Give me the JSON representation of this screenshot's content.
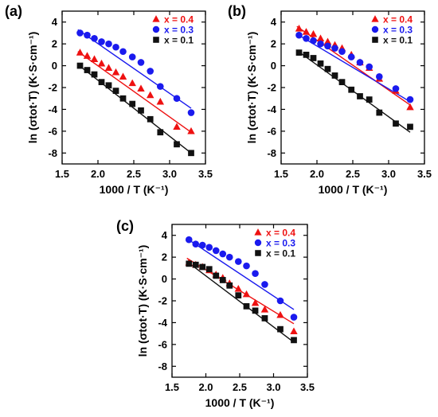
{
  "chart_data": [
    {
      "type": "scatter",
      "panel_label": "(a)",
      "xlabel": "1000 / T (K⁻¹)",
      "ylabel": "ln (σtot·T) (K·S·cm⁻¹)",
      "xlim": [
        1.5,
        3.5
      ],
      "ylim": [
        -9,
        5
      ],
      "x_ticks": [
        "1.5",
        "2.0",
        "2.5",
        "3.0",
        "3.5"
      ],
      "y_ticks": [
        "-8",
        "-6",
        "-4",
        "-2",
        "0",
        "2",
        "4"
      ],
      "legend_position": "top-right",
      "series": [
        {
          "name": "x = 0.4",
          "color": "#ee1111",
          "marker": "triangle",
          "x": [
            1.75,
            1.85,
            1.95,
            2.05,
            2.15,
            2.25,
            2.35,
            2.48,
            2.6,
            2.73,
            2.87,
            3.1,
            3.3
          ],
          "y": [
            1.2,
            0.9,
            0.6,
            0.2,
            -0.2,
            -0.6,
            -1.0,
            -1.6,
            -2.1,
            -2.7,
            -3.3,
            -5.6,
            -6.0
          ],
          "fit": [
            [
              1.72,
              1.3
            ],
            [
              3.3,
              -6.1
            ]
          ]
        },
        {
          "name": "x = 0.3",
          "color": "#1a1aee",
          "marker": "circle",
          "x": [
            1.75,
            1.85,
            1.95,
            2.05,
            2.15,
            2.25,
            2.35,
            2.48,
            2.6,
            2.73,
            2.87,
            3.1,
            3.3
          ],
          "y": [
            3.0,
            2.8,
            2.5,
            2.2,
            2.0,
            1.7,
            1.3,
            0.8,
            0.3,
            -0.5,
            -1.9,
            -3.0,
            -4.3
          ],
          "fit": [
            [
              1.72,
              3.3
            ],
            [
              3.3,
              -3.9
            ]
          ]
        },
        {
          "name": "x = 0.1",
          "color": "#111111",
          "marker": "square",
          "x": [
            1.75,
            1.85,
            1.95,
            2.05,
            2.15,
            2.25,
            2.35,
            2.48,
            2.6,
            2.73,
            2.87,
            3.1,
            3.3
          ],
          "y": [
            0.0,
            -0.4,
            -0.8,
            -1.5,
            -1.8,
            -2.3,
            -3.0,
            -3.5,
            -4.1,
            -4.9,
            -6.1,
            -7.2,
            -8.0
          ],
          "fit": [
            [
              1.72,
              0.1
            ],
            [
              3.3,
              -8.0
            ]
          ]
        }
      ]
    },
    {
      "type": "scatter",
      "panel_label": "(b)",
      "xlabel": "1000 / T (K⁻¹)",
      "ylabel": "ln (σtot·T) (K·S·cm⁻¹)",
      "xlim": [
        1.5,
        3.5
      ],
      "ylim": [
        -9,
        5
      ],
      "x_ticks": [
        "1.5",
        "2.0",
        "2.5",
        "3.0",
        "3.5"
      ],
      "y_ticks": [
        "-8",
        "-6",
        "-4",
        "-2",
        "0",
        "2",
        "4"
      ],
      "legend_position": "top-right",
      "series": [
        {
          "name": "x = 0.4",
          "color": "#ee1111",
          "marker": "triangle",
          "x": [
            1.75,
            1.85,
            1.95,
            2.05,
            2.15,
            2.25,
            2.35,
            2.48,
            2.6,
            2.73,
            2.87,
            3.1,
            3.3
          ],
          "y": [
            3.4,
            3.1,
            2.9,
            2.5,
            2.2,
            1.9,
            1.6,
            1.0,
            0.3,
            -0.2,
            -1.2,
            -2.3,
            -3.8
          ],
          "fit": [
            [
              1.72,
              3.6
            ],
            [
              3.3,
              -3.6
            ]
          ]
        },
        {
          "name": "x = 0.3",
          "color": "#1a1aee",
          "marker": "circle",
          "x": [
            1.75,
            1.85,
            1.95,
            2.05,
            2.15,
            2.25,
            2.35,
            2.48,
            2.6,
            2.73,
            2.87,
            3.1,
            3.3
          ],
          "y": [
            2.8,
            2.5,
            2.3,
            2.0,
            1.8,
            1.6,
            1.3,
            0.8,
            0.3,
            -0.1,
            -1.0,
            -2.1,
            -3.1
          ],
          "fit": [
            [
              1.72,
              2.9
            ],
            [
              3.3,
              -3.3
            ]
          ]
        },
        {
          "name": "x = 0.1",
          "color": "#111111",
          "marker": "square",
          "x": [
            1.75,
            1.85,
            1.95,
            2.05,
            2.15,
            2.25,
            2.35,
            2.48,
            2.6,
            2.73,
            2.87,
            3.1,
            3.3
          ],
          "y": [
            1.2,
            1.0,
            0.7,
            0.2,
            -0.3,
            -0.9,
            -1.5,
            -2.2,
            -2.8,
            -3.1,
            -4.3,
            -5.3,
            -5.6
          ],
          "fit": [
            [
              1.72,
              1.4
            ],
            [
              3.3,
              -6.1
            ]
          ]
        }
      ]
    },
    {
      "type": "scatter",
      "panel_label": "(c)",
      "xlabel": "1000 / T (K⁻¹)",
      "ylabel": "ln (σtot·T) (K·S·cm⁻¹)",
      "xlim": [
        1.5,
        3.5
      ],
      "ylim": [
        -9,
        5
      ],
      "x_ticks": [
        "1.5",
        "2.0",
        "2.5",
        "3.0",
        "3.5"
      ],
      "y_ticks": [
        "-8",
        "-6",
        "-4",
        "-2",
        "0",
        "2",
        "4"
      ],
      "legend_position": "top-right",
      "series": [
        {
          "name": "x = 0.4",
          "color": "#ee1111",
          "marker": "triangle",
          "x": [
            1.75,
            1.85,
            1.95,
            2.05,
            2.15,
            2.25,
            2.35,
            2.48,
            2.6,
            2.73,
            2.87,
            3.1,
            3.3
          ],
          "y": [
            1.5,
            1.3,
            1.1,
            0.8,
            0.4,
            0.1,
            -0.4,
            -0.9,
            -1.4,
            -2.2,
            -2.8,
            -3.3,
            -4.8
          ],
          "fit": [
            [
              1.72,
              1.9
            ],
            [
              3.3,
              -4.1
            ]
          ]
        },
        {
          "name": "x = 0.3",
          "color": "#1a1aee",
          "marker": "circle",
          "x": [
            1.75,
            1.85,
            1.95,
            2.05,
            2.15,
            2.25,
            2.35,
            2.48,
            2.6,
            2.73,
            2.87,
            3.1,
            3.3
          ],
          "y": [
            3.6,
            3.2,
            3.1,
            2.9,
            2.6,
            2.3,
            2.0,
            1.6,
            1.2,
            0.5,
            -0.5,
            -2.0,
            -3.5
          ],
          "fit": [
            [
              1.72,
              3.7
            ],
            [
              3.3,
              -2.8
            ]
          ]
        },
        {
          "name": "x = 0.1",
          "color": "#111111",
          "marker": "square",
          "x": [
            1.75,
            1.85,
            1.95,
            2.05,
            2.15,
            2.25,
            2.35,
            2.48,
            2.6,
            2.73,
            2.87,
            3.1,
            3.3
          ],
          "y": [
            1.4,
            1.3,
            1.1,
            0.9,
            0.3,
            -0.1,
            -0.6,
            -1.5,
            -2.5,
            -2.9,
            -3.6,
            -4.6,
            -5.6
          ],
          "fit": [
            [
              1.72,
              1.6
            ],
            [
              3.3,
              -5.8
            ]
          ]
        }
      ]
    }
  ]
}
